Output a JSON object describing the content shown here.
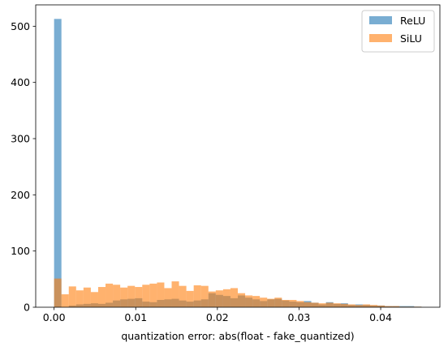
{
  "chart_data": {
    "type": "histogram",
    "xlabel": "quantization error: abs(float - fake_quantized)",
    "ylabel": "",
    "xlim": [
      -0.00225,
      0.04725
    ],
    "ylim": [
      0,
      538
    ],
    "x_ticks": [
      0.0,
      0.01,
      0.02,
      0.03,
      0.04
    ],
    "x_tick_labels": [
      "0.00",
      "0.01",
      "0.02",
      "0.03",
      "0.04"
    ],
    "y_ticks": [
      0,
      100,
      200,
      300,
      400,
      500
    ],
    "y_tick_labels": [
      "0",
      "100",
      "200",
      "300",
      "400",
      "500"
    ],
    "bin_start": 0.0,
    "bin_width": 0.0009,
    "legend": {
      "location": "upper right"
    },
    "series": [
      {
        "name": "ReLU",
        "color": "#1f77b4",
        "alpha": 0.6,
        "values": [
          513,
          0,
          3,
          5,
          6,
          7,
          6,
          8,
          12,
          14,
          15,
          16,
          10,
          9,
          13,
          14,
          15,
          12,
          10,
          12,
          14,
          25,
          22,
          20,
          16,
          21,
          17,
          14,
          11,
          14,
          15,
          12,
          10,
          9,
          11,
          8,
          5,
          9,
          6,
          7,
          4,
          5,
          4,
          3,
          3,
          2,
          2,
          2,
          2,
          1
        ]
      },
      {
        "name": "SiLU",
        "color": "#ff7f0e",
        "alpha": 0.6,
        "values": [
          51,
          23,
          37,
          30,
          35,
          27,
          36,
          42,
          40,
          35,
          38,
          36,
          40,
          42,
          44,
          34,
          46,
          38,
          29,
          39,
          38,
          28,
          30,
          32,
          34,
          25,
          21,
          20,
          17,
          15,
          17,
          13,
          13,
          11,
          9,
          8,
          7,
          8,
          7,
          6,
          5,
          4,
          5,
          4,
          3,
          2,
          2,
          1,
          1,
          1
        ]
      }
    ]
  }
}
